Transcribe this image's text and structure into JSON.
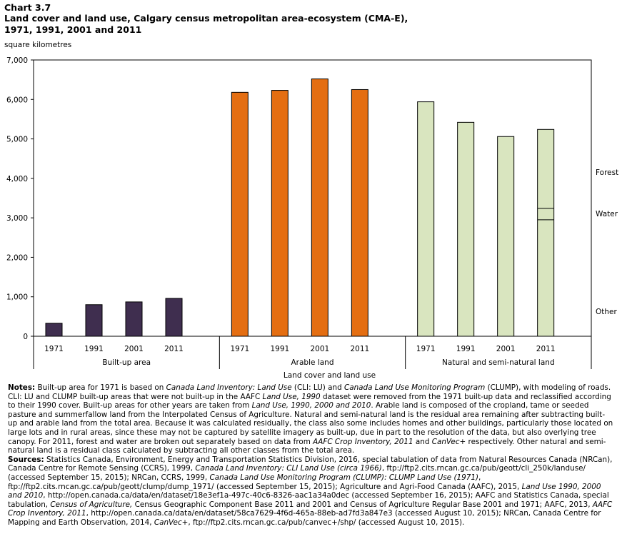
{
  "header": {
    "chart_number": "Chart 3.7",
    "title": "Land cover and land use, Calgary census metropolitan area-ecosystem (CMA-E),\n1971, 1991, 2001 and 2011"
  },
  "colors": {
    "built_up": "#3f2e4f",
    "arable": "#e46e12",
    "natural": "#d9e5bf",
    "stroke": "#000000"
  },
  "chart_data": {
    "type": "bar",
    "title": "Land cover and land use, Calgary census metropolitan area-ecosystem (CMA-E), 1971, 1991, 2001 and 2011",
    "ylabel": "square kilometres",
    "xlabel": "Land cover and land use",
    "ylim": [
      0,
      7000
    ],
    "yticks": [
      "0",
      "1,000",
      "2,000",
      "3,000",
      "4,000",
      "5,000",
      "6,000",
      "7,000"
    ],
    "grid": false,
    "groups": [
      {
        "name": "Built-up area",
        "categories": [
          "1971",
          "1991",
          "2001",
          "2011"
        ],
        "values": [
          330,
          800,
          870,
          960
        ],
        "color_key": "built_up"
      },
      {
        "name": "Arable land",
        "categories": [
          "1971",
          "1991",
          "2001",
          "2011"
        ],
        "values": [
          6180,
          6230,
          6520,
          6250
        ],
        "color_key": "arable"
      },
      {
        "name": "Natural and semi-natural land",
        "categories": [
          "1971",
          "1991",
          "2001",
          "2011"
        ],
        "values": [
          5940,
          5420,
          5060,
          5240
        ],
        "color_key": "natural",
        "stack_2011": [
          {
            "name": "Other",
            "value": 2950
          },
          {
            "name": "Water",
            "value": 290
          },
          {
            "name": "Forest",
            "value": 2000
          }
        ]
      }
    ],
    "stack_labels": [
      "Forest",
      "Water",
      "Other"
    ]
  },
  "notes": {
    "notes_label": "Notes:",
    "notes_text": [
      " Built-up area for 1971 is based on ",
      "Canada Land Inventory: Land Use",
      " (CLI: LU) and ",
      "Canada Land Use Monitoring Program",
      " (CLUMP), with modeling of roads. CLI: LU and CLUMP built-up areas that were not built-up in the AAFC ",
      "Land Use, 1990",
      " dataset were removed from the 1971 built-up data and reclassified according to their 1990 cover. Built-up areas for other years are taken from ",
      "Land Use, 1990, 2000 and 2010",
      ". Arable land is composed of the cropland, tame or seeded pasture and summerfallow land from the Interpolated Census of Agriculture. Natural and semi-natural land is the residual area remaining after subtracting built-up and arable land from the total area. Because it was calculated residually, the class also some includes homes and other buildings, particularly those located on large lots and in rural areas, since these may not be captured by satellite imagery as built-up, due in part to the resolution of the data, but also overlying tree canopy. For 2011, forest and water are broken out separately based on data from ",
      "AAFC Crop Inventory, 2011",
      " and ",
      "CanVec+",
      " respectively. Other natural and semi-natural land is a residual class calculated by subtracting all other classes from the total area."
    ],
    "sources_label": "Sources:",
    "sources_text": [
      " Statistics Canada, Environment, Energy and Transportation Statistics Division, 2016, special tabulation of data from Natural Resources Canada (NRCan), Canada Centre for Remote Sensing (CCRS), 1999, ",
      "Canada Land Inventory: CLI Land Use (circa 1966)",
      ", ftp://ftp2.cits.rncan.gc.ca/pub/geott/cli_250k/landuse/ (accessed September 15, 2015); NRCan, CCRS, 1999, ",
      "Canada Land Use Monitoring Program (CLUMP): CLUMP Land Use (1971)",
      ", ftp://ftp2.cits.rncan.gc.ca/pub/geott/clump/dump_1971/ (accessed September 15, 2015); Agriculture and Agri-Food Canada (AAFC), 2015, ",
      "Land Use 1990, 2000 and 2010",
      ", http://open.canada.ca/data/en/dataset/18e3ef1a-497c-40c6-8326-aac1a34a0dec (accessed September 16, 2015); AAFC and Statistics Canada, special tabulation, ",
      "Census of Agriculture,",
      " Census Geographic Component Base 2011 and 2001 and Census of Agriculture Regular Base 2001 and 1971; AAFC, 2013, ",
      "AAFC Crop Inventory, 2011",
      ", http://open.canada.ca/data/en/dataset/58ca7629-4f6d-465a-88eb-ad7fd3a847e3 (accessed August 10, 2015); NRCan, Canada Centre for Mapping and Earth Observation, 2014, ",
      "CanVec+",
      ", ftp://ftp2.cits.rncan.gc.ca/pub/canvec+/shp/ (accessed August 10, 2015)."
    ]
  }
}
